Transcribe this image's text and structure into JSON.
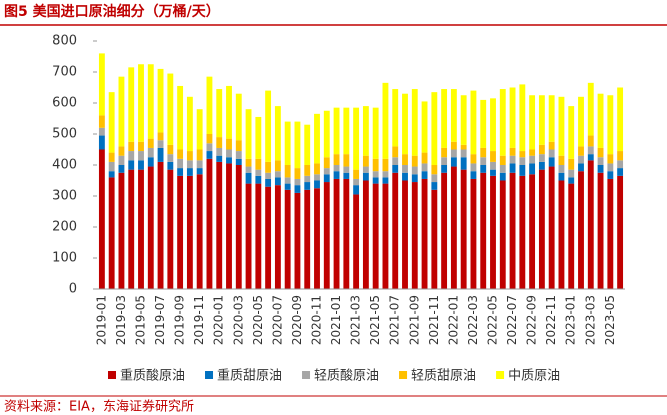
{
  "chart_data": {
    "type": "stacked_bar",
    "title": "图5 美国进口原油细分（万桶/天）",
    "source": "资料来源：EIA，东海证券研究所",
    "categories": [
      "2019-01",
      null,
      "2019-03",
      null,
      "2019-05",
      null,
      "2019-07",
      null,
      "2019-09",
      null,
      "2019-11",
      null,
      "2020-01",
      null,
      "2020-03",
      null,
      "2020-05",
      null,
      "2020-07",
      null,
      "2020-09",
      null,
      "2020-11",
      null,
      "2021-01",
      null,
      "2021-03",
      null,
      "2021-05",
      null,
      "2021-07",
      null,
      "2021-09",
      null,
      "2021-11",
      null,
      "2022-01",
      null,
      "2022-03",
      null,
      "2022-05",
      null,
      "2022-07",
      null,
      "2022-09",
      null,
      "2022-11",
      null,
      "2023-01",
      null,
      "2023-03",
      null,
      "2023-05",
      null
    ],
    "series": [
      {
        "name": "重质酸原油",
        "color": "#c00000",
        "values": [
          450,
          360,
          375,
          385,
          385,
          395,
          410,
          385,
          365,
          365,
          370,
          420,
          410,
          405,
          400,
          340,
          340,
          330,
          335,
          320,
          310,
          320,
          325,
          345,
          355,
          355,
          305,
          350,
          340,
          340,
          375,
          350,
          345,
          355,
          320,
          375,
          395,
          385,
          355,
          375,
          365,
          350,
          375,
          365,
          370,
          385,
          395,
          350,
          340,
          380,
          415,
          375,
          355,
          365
        ]
      },
      {
        "name": "重质甜原油",
        "color": "#0070c0",
        "values": [
          45,
          20,
          25,
          30,
          30,
          30,
          45,
          25,
          25,
          25,
          20,
          25,
          20,
          20,
          20,
          35,
          25,
          25,
          25,
          20,
          25,
          25,
          25,
          25,
          25,
          20,
          30,
          25,
          20,
          20,
          25,
          25,
          25,
          25,
          25,
          25,
          30,
          40,
          25,
          25,
          20,
          25,
          30,
          35,
          35,
          25,
          30,
          25,
          20,
          25,
          20,
          25,
          25,
          25
        ]
      },
      {
        "name": "轻质酸原油",
        "color": "#a6a6a6",
        "values": [
          25,
          30,
          30,
          30,
          30,
          30,
          25,
          25,
          30,
          25,
          25,
          25,
          25,
          25,
          25,
          20,
          20,
          20,
          20,
          20,
          20,
          20,
          20,
          20,
          20,
          20,
          20,
          20,
          20,
          20,
          25,
          25,
          25,
          25,
          25,
          25,
          25,
          25,
          25,
          25,
          25,
          25,
          25,
          25,
          25,
          25,
          25,
          25,
          25,
          25,
          25,
          25,
          25,
          25
        ]
      },
      {
        "name": "轻质甜原油",
        "color": "#ffc000",
        "values": [
          40,
          30,
          30,
          30,
          30,
          30,
          25,
          30,
          30,
          30,
          35,
          30,
          35,
          35,
          35,
          25,
          35,
          35,
          35,
          40,
          35,
          35,
          35,
          35,
          35,
          40,
          30,
          35,
          40,
          40,
          35,
          35,
          35,
          35,
          30,
          30,
          25,
          15,
          30,
          30,
          35,
          30,
          25,
          20,
          20,
          30,
          25,
          30,
          35,
          30,
          35,
          30,
          30,
          30
        ]
      },
      {
        "name": "中质原油",
        "color": "#ffff00",
        "values": [
          200,
          195,
          225,
          240,
          250,
          240,
          205,
          230,
          205,
          175,
          130,
          185,
          155,
          170,
          150,
          160,
          135,
          230,
          175,
          140,
          150,
          130,
          160,
          150,
          150,
          150,
          200,
          160,
          165,
          245,
          185,
          195,
          215,
          165,
          235,
          190,
          170,
          160,
          205,
          155,
          170,
          215,
          195,
          215,
          175,
          160,
          150,
          190,
          170,
          160,
          170,
          175,
          190,
          205
        ]
      }
    ],
    "ylim": [
      0,
      800
    ],
    "yticks": [
      0,
      100,
      200,
      300,
      400,
      500,
      600,
      700,
      800
    ]
  }
}
